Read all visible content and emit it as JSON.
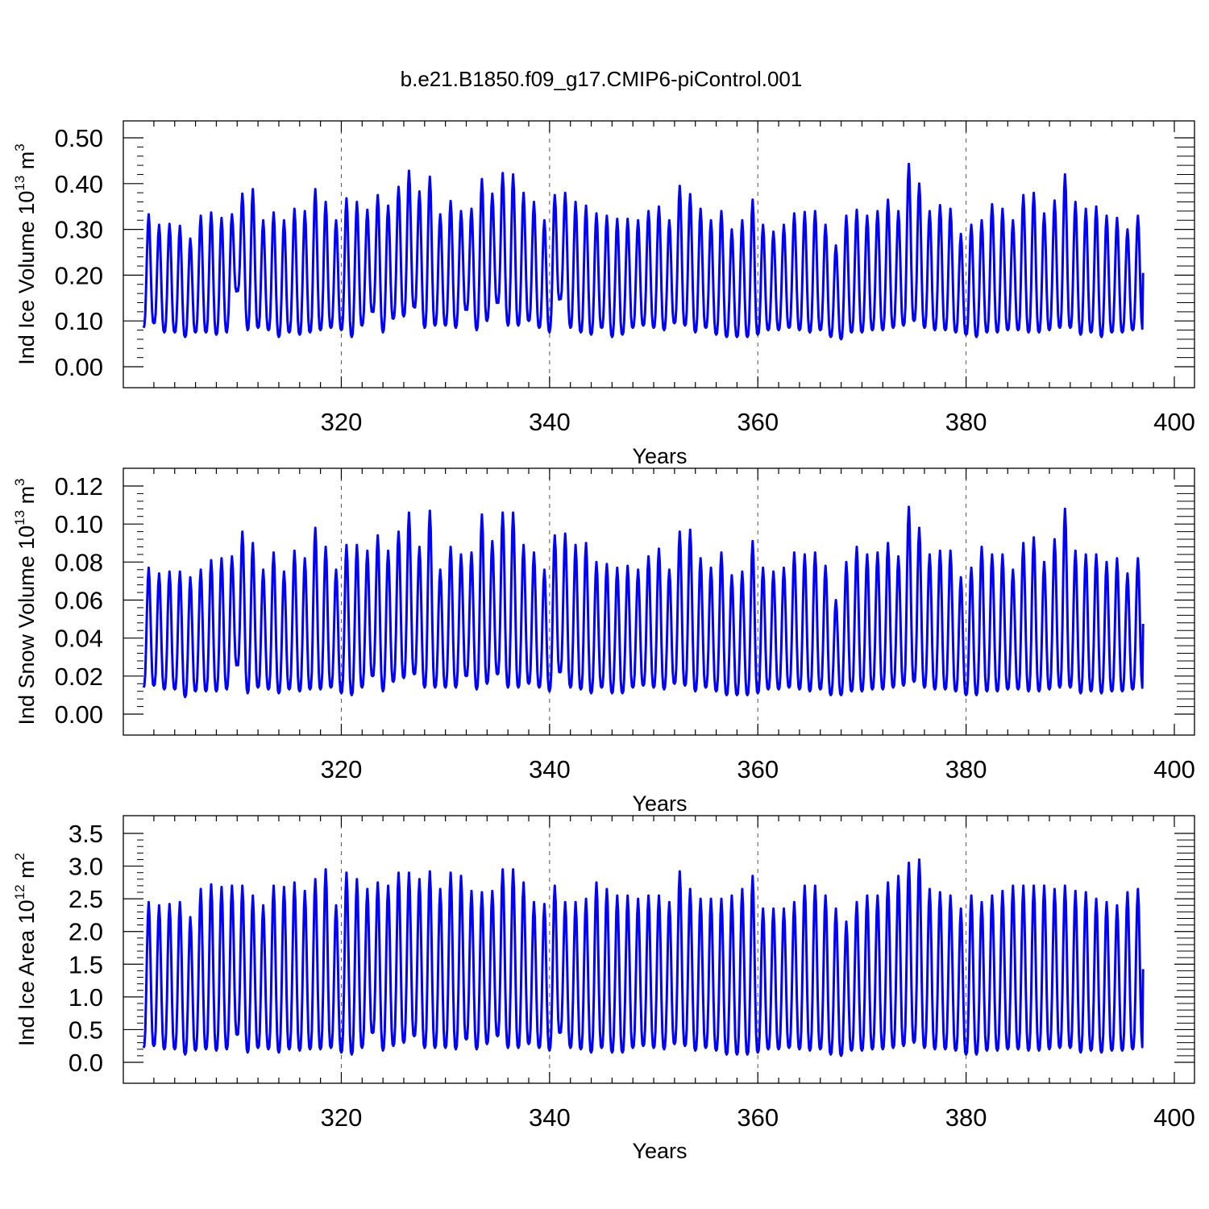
{
  "title": "b.e21.B1850.f09_g17.CMIP6-piControl.001",
  "colors": {
    "series": "#0000ff",
    "axes": "#000000",
    "grid": "#555555"
  },
  "chart_data": [
    {
      "type": "line",
      "ylabel_main": "Ind Ice Volume 10",
      "ylabel_exp": "13",
      "ylabel_unit": " m",
      "ylabel_unit_exp": "3",
      "xlabel": "Years",
      "xlim": [
        301,
        400
      ],
      "ylim": [
        0.0,
        0.5
      ],
      "x_ticks": [
        320,
        340,
        360,
        380,
        400
      ],
      "x_tick_labels": [
        "320",
        "340",
        "360",
        "380",
        "400"
      ],
      "y_ticks": [
        0.0,
        0.1,
        0.2,
        0.3,
        0.4,
        0.5
      ],
      "y_tick_labels": [
        "0.00",
        "0.10",
        "0.20",
        "0.30",
        "0.40",
        "0.50"
      ],
      "grid": "vertical dashed at major x ticks",
      "series": [
        {
          "year_start": 301,
          "samples_per_year": 12,
          "seasonal_cycle": "annual",
          "annual_max": [
            0.333,
            0.31,
            0.312,
            0.308,
            0.28,
            0.33,
            0.337,
            0.325,
            0.333,
            0.378,
            0.388,
            0.32,
            0.337,
            0.32,
            0.345,
            0.34,
            0.388,
            0.36,
            0.32,
            0.368,
            0.36,
            0.343,
            0.375,
            0.352,
            0.393,
            0.428,
            0.383,
            0.415,
            0.333,
            0.362,
            0.34,
            0.345,
            0.41,
            0.378,
            0.423,
            0.42,
            0.38,
            0.36,
            0.32,
            0.375,
            0.38,
            0.36,
            0.352,
            0.335,
            0.33,
            0.323,
            0.323,
            0.32,
            0.34,
            0.35,
            0.32,
            0.395,
            0.377,
            0.345,
            0.32,
            0.34,
            0.3,
            0.32,
            0.365,
            0.31,
            0.295,
            0.31,
            0.335,
            0.338,
            0.34,
            0.31,
            0.265,
            0.33,
            0.343,
            0.33,
            0.34,
            0.365,
            0.34,
            0.443,
            0.4,
            0.34,
            0.353,
            0.345,
            0.29,
            0.31,
            0.32,
            0.355,
            0.345,
            0.32,
            0.375,
            0.38,
            0.335,
            0.363,
            0.42,
            0.36,
            0.345,
            0.35,
            0.33,
            0.325,
            0.3,
            0.33
          ],
          "annual_min": [
            0.085,
            0.095,
            0.075,
            0.075,
            0.065,
            0.075,
            0.075,
            0.07,
            0.075,
            0.17,
            0.08,
            0.085,
            0.08,
            0.065,
            0.075,
            0.07,
            0.075,
            0.08,
            0.085,
            0.08,
            0.065,
            0.09,
            0.12,
            0.075,
            0.105,
            0.11,
            0.13,
            0.085,
            0.09,
            0.09,
            0.085,
            0.125,
            0.08,
            0.1,
            0.14,
            0.09,
            0.09,
            0.1,
            0.085,
            0.075,
            0.15,
            0.085,
            0.075,
            0.07,
            0.085,
            0.065,
            0.07,
            0.085,
            0.09,
            0.085,
            0.08,
            0.095,
            0.09,
            0.075,
            0.085,
            0.07,
            0.065,
            0.065,
            0.065,
            0.07,
            0.08,
            0.08,
            0.085,
            0.08,
            0.075,
            0.08,
            0.065,
            0.06,
            0.075,
            0.075,
            0.08,
            0.08,
            0.085,
            0.09,
            0.1,
            0.085,
            0.08,
            0.08,
            0.075,
            0.07,
            0.065,
            0.075,
            0.075,
            0.08,
            0.08,
            0.075,
            0.075,
            0.08,
            0.085,
            0.085,
            0.07,
            0.075,
            0.065,
            0.075,
            0.075,
            0.08
          ]
        }
      ]
    },
    {
      "type": "line",
      "ylabel_main": "Ind Snow Volume 10",
      "ylabel_exp": "13",
      "ylabel_unit": " m",
      "ylabel_unit_exp": "3",
      "xlabel": "Years",
      "xlim": [
        301,
        400
      ],
      "ylim": [
        0.0,
        0.12
      ],
      "x_ticks": [
        320,
        340,
        360,
        380,
        400
      ],
      "x_tick_labels": [
        "320",
        "340",
        "360",
        "380",
        "400"
      ],
      "y_ticks": [
        0.0,
        0.02,
        0.04,
        0.06,
        0.08,
        0.1,
        0.12
      ],
      "y_tick_labels": [
        "0.00",
        "0.02",
        "0.04",
        "0.06",
        "0.08",
        "0.10",
        "0.12"
      ],
      "grid": "vertical dashed at major x ticks",
      "series": [
        {
          "year_start": 301,
          "samples_per_year": 12,
          "seasonal_cycle": "annual",
          "annual_max": [
            0.077,
            0.074,
            0.075,
            0.075,
            0.072,
            0.076,
            0.081,
            0.082,
            0.083,
            0.096,
            0.09,
            0.076,
            0.085,
            0.075,
            0.086,
            0.082,
            0.098,
            0.088,
            0.076,
            0.089,
            0.089,
            0.086,
            0.094,
            0.086,
            0.096,
            0.106,
            0.088,
            0.107,
            0.076,
            0.088,
            0.084,
            0.085,
            0.105,
            0.091,
            0.106,
            0.106,
            0.089,
            0.085,
            0.076,
            0.094,
            0.095,
            0.089,
            0.09,
            0.08,
            0.079,
            0.077,
            0.078,
            0.076,
            0.083,
            0.087,
            0.076,
            0.096,
            0.097,
            0.082,
            0.077,
            0.085,
            0.073,
            0.075,
            0.091,
            0.077,
            0.075,
            0.077,
            0.085,
            0.084,
            0.085,
            0.078,
            0.06,
            0.08,
            0.088,
            0.084,
            0.085,
            0.09,
            0.083,
            0.109,
            0.098,
            0.084,
            0.086,
            0.086,
            0.072,
            0.077,
            0.088,
            0.084,
            0.084,
            0.076,
            0.09,
            0.093,
            0.08,
            0.092,
            0.108,
            0.086,
            0.084,
            0.084,
            0.08,
            0.082,
            0.074,
            0.082
          ],
          "annual_min": [
            0.014,
            0.015,
            0.013,
            0.013,
            0.009,
            0.012,
            0.012,
            0.012,
            0.013,
            0.026,
            0.011,
            0.014,
            0.013,
            0.011,
            0.013,
            0.012,
            0.013,
            0.013,
            0.014,
            0.011,
            0.01,
            0.014,
            0.02,
            0.012,
            0.017,
            0.019,
            0.021,
            0.014,
            0.014,
            0.014,
            0.014,
            0.02,
            0.013,
            0.016,
            0.021,
            0.014,
            0.014,
            0.016,
            0.014,
            0.012,
            0.022,
            0.014,
            0.013,
            0.011,
            0.014,
            0.011,
            0.011,
            0.014,
            0.015,
            0.014,
            0.013,
            0.016,
            0.015,
            0.012,
            0.014,
            0.012,
            0.01,
            0.01,
            0.01,
            0.011,
            0.013,
            0.013,
            0.014,
            0.013,
            0.012,
            0.013,
            0.01,
            0.01,
            0.012,
            0.012,
            0.013,
            0.013,
            0.014,
            0.015,
            0.017,
            0.014,
            0.013,
            0.013,
            0.012,
            0.01,
            0.01,
            0.012,
            0.012,
            0.013,
            0.013,
            0.012,
            0.012,
            0.013,
            0.014,
            0.014,
            0.011,
            0.012,
            0.011,
            0.012,
            0.012,
            0.013
          ]
        }
      ]
    },
    {
      "type": "line",
      "ylabel_main": "Ind Ice Area 10",
      "ylabel_exp": "12",
      "ylabel_unit": " m",
      "ylabel_unit_exp": "2",
      "xlabel": "Years",
      "xlim": [
        301,
        400
      ],
      "ylim": [
        0.0,
        3.5
      ],
      "x_ticks": [
        320,
        340,
        360,
        380,
        400
      ],
      "x_tick_labels": [
        "320",
        "340",
        "360",
        "380",
        "400"
      ],
      "y_ticks": [
        0.0,
        0.5,
        1.0,
        1.5,
        2.0,
        2.5,
        3.0,
        3.5
      ],
      "y_tick_labels": [
        "0.0",
        "0.5",
        "1.0",
        "1.5",
        "2.0",
        "2.5",
        "3.0",
        "3.5"
      ],
      "grid": "vertical dashed at major x ticks",
      "series": [
        {
          "year_start": 301,
          "samples_per_year": 12,
          "seasonal_cycle": "annual",
          "annual_max": [
            2.45,
            2.4,
            2.42,
            2.45,
            2.22,
            2.65,
            2.72,
            2.68,
            2.7,
            2.7,
            2.55,
            2.4,
            2.7,
            2.68,
            2.75,
            2.62,
            2.8,
            2.95,
            2.4,
            2.9,
            2.8,
            2.65,
            2.75,
            2.7,
            2.9,
            2.9,
            2.8,
            2.92,
            2.65,
            2.9,
            2.85,
            2.62,
            2.6,
            2.62,
            2.95,
            2.95,
            2.75,
            2.45,
            2.42,
            2.7,
            2.45,
            2.45,
            2.5,
            2.75,
            2.65,
            2.55,
            2.55,
            2.5,
            2.55,
            2.55,
            2.45,
            2.92,
            2.65,
            2.5,
            2.5,
            2.5,
            2.55,
            2.65,
            2.85,
            2.35,
            2.35,
            2.35,
            2.45,
            2.7,
            2.7,
            2.55,
            2.35,
            2.15,
            2.45,
            2.55,
            2.55,
            2.75,
            2.85,
            3.05,
            3.1,
            2.65,
            2.6,
            2.55,
            2.35,
            2.55,
            2.45,
            2.55,
            2.62,
            2.7,
            2.7,
            2.7,
            2.7,
            2.65,
            2.7,
            2.62,
            2.6,
            2.5,
            2.45,
            2.4,
            2.6,
            2.65
          ],
          "annual_min": [
            0.22,
            0.25,
            0.2,
            0.2,
            0.12,
            0.18,
            0.2,
            0.18,
            0.2,
            0.42,
            0.15,
            0.22,
            0.2,
            0.15,
            0.2,
            0.18,
            0.2,
            0.2,
            0.22,
            0.15,
            0.12,
            0.22,
            0.45,
            0.18,
            0.25,
            0.3,
            0.4,
            0.22,
            0.22,
            0.22,
            0.2,
            0.35,
            0.2,
            0.28,
            0.4,
            0.22,
            0.22,
            0.28,
            0.22,
            0.18,
            0.45,
            0.22,
            0.2,
            0.15,
            0.22,
            0.15,
            0.15,
            0.22,
            0.25,
            0.22,
            0.2,
            0.28,
            0.25,
            0.18,
            0.22,
            0.18,
            0.12,
            0.12,
            0.12,
            0.15,
            0.2,
            0.2,
            0.22,
            0.2,
            0.18,
            0.2,
            0.12,
            0.1,
            0.18,
            0.18,
            0.2,
            0.2,
            0.22,
            0.25,
            0.3,
            0.22,
            0.2,
            0.2,
            0.18,
            0.12,
            0.12,
            0.18,
            0.18,
            0.2,
            0.2,
            0.18,
            0.18,
            0.2,
            0.22,
            0.22,
            0.15,
            0.18,
            0.15,
            0.18,
            0.18,
            0.2
          ]
        }
      ]
    }
  ]
}
